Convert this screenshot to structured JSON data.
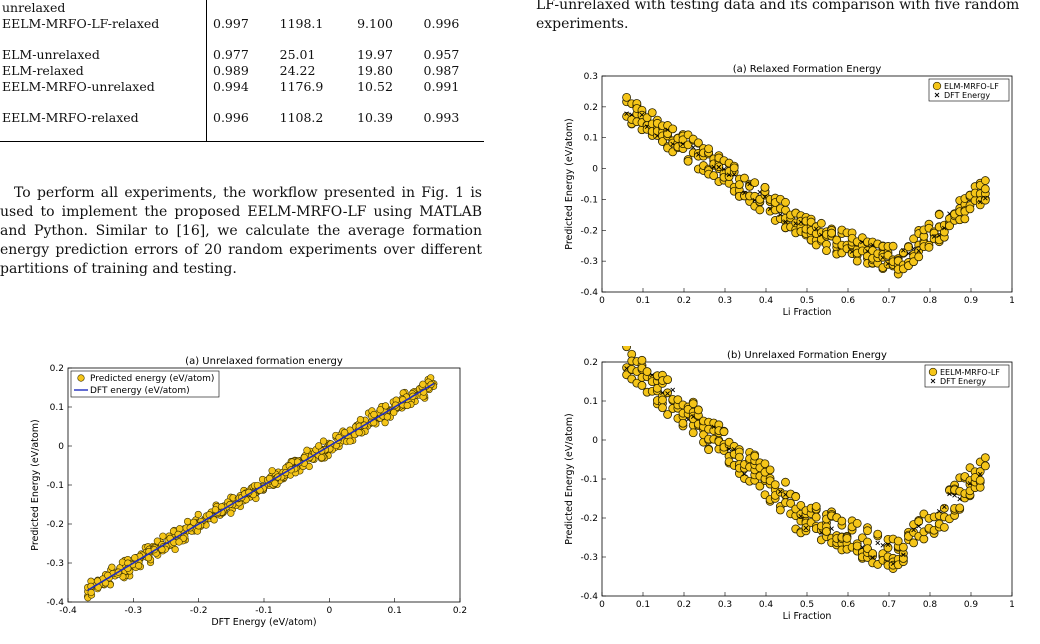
{
  "table": {
    "rows": [
      {
        "name": "unrelaxed",
        "values": [
          "",
          "",
          "",
          ""
        ]
      },
      {
        "name": "EELM-MRFO-LF-relaxed",
        "values": [
          "0.997",
          "1198.1",
          "9.100",
          "0.996"
        ]
      },
      {
        "name": "ELM-unrelaxed",
        "values": [
          "0.977",
          "25.01",
          "19.97",
          "0.957"
        ]
      },
      {
        "name": "ELM-relaxed",
        "values": [
          "0.989",
          "24.22",
          "19.80",
          "0.987"
        ]
      },
      {
        "name": "EELM-MRFO-unrelaxed",
        "values": [
          "0.994",
          "1176.9",
          "10.52",
          "0.991"
        ]
      },
      {
        "name": "EELM-MRFO-relaxed",
        "values": [
          "0.996",
          "1108.2",
          "10.39",
          "0.993"
        ]
      }
    ]
  },
  "paragraph": "To perform all experiments, the workflow presented in Fig. 1 is used to implement the proposed EELM-MRFO-LF using MATLAB and Python. Similar to [16], we calculate the average formation energy prediction errors of 20 random experiments over different partitions of training and testing.",
  "caption_top": "LF-unrelaxed with testing data and its comparison with five random experiments.",
  "chart_data": [
    {
      "type": "scatter",
      "title": "(a) Unrelaxed formation energy",
      "xlabel": "DFT Energy (eV/atom)",
      "ylabel": "Predicted Energy (eV/atom)",
      "xlim": [
        -0.4,
        0.2
      ],
      "ylim": [
        -0.4,
        0.2
      ],
      "xticks": [
        "-0.4",
        "-0.3",
        "-0.2",
        "-0.1",
        "0",
        "0.1",
        "0.2"
      ],
      "yticks": [
        "-0.4",
        "-0.3",
        "-0.2",
        "-0.1",
        "0",
        "0.1",
        "0.2"
      ],
      "legend": [
        "Predicted energy (eV/atom)",
        "DFT energy (eV/atom)"
      ],
      "legend_position": "top-left",
      "line": {
        "x": [
          -0.37,
          0.16
        ],
        "y": [
          -0.37,
          0.16
        ]
      },
      "points_desc": "predicted vs DFT, clustered along y=x from -0.37 to 0.16",
      "colors": {
        "marker": "#f5c518",
        "line": "#1f2dbf"
      }
    },
    {
      "type": "scatter",
      "title": "(a) Relaxed Formation Energy",
      "xlabel": "Li Fraction",
      "ylabel": "Predicted Energy (eV/atom)",
      "xlim": [
        0,
        1
      ],
      "ylim": [
        -0.4,
        0.3
      ],
      "xticks": [
        "0",
        "0.1",
        "0.2",
        "0.3",
        "0.4",
        "0.5",
        "0.6",
        "0.7",
        "0.8",
        "0.9",
        "1"
      ],
      "yticks": [
        "-0.4",
        "-0.3",
        "-0.2",
        "-0.1",
        "0",
        "0.1",
        "0.2",
        "0.3"
      ],
      "legend": [
        "ELM-MRFO-LF",
        "DFT Energy"
      ],
      "legend_position": "top-right"
    },
    {
      "type": "scatter",
      "title": "(b) Unrelaxed Formation Energy",
      "xlabel": "Li Fraction",
      "ylabel": "Predicted Energy (eV/atom)",
      "xlim": [
        0,
        1
      ],
      "ylim": [
        -0.4,
        0.2
      ],
      "xticks": [
        "0",
        "0.1",
        "0.2",
        "0.3",
        "0.4",
        "0.5",
        "0.6",
        "0.7",
        "0.8",
        "0.9",
        "1"
      ],
      "yticks": [
        "-0.4",
        "-0.3",
        "-0.2",
        "-0.1",
        "0",
        "0.1",
        "0.2"
      ],
      "legend": [
        "EELM-MRFO-LF",
        "DFT Energy"
      ],
      "legend_position": "top-right"
    }
  ]
}
